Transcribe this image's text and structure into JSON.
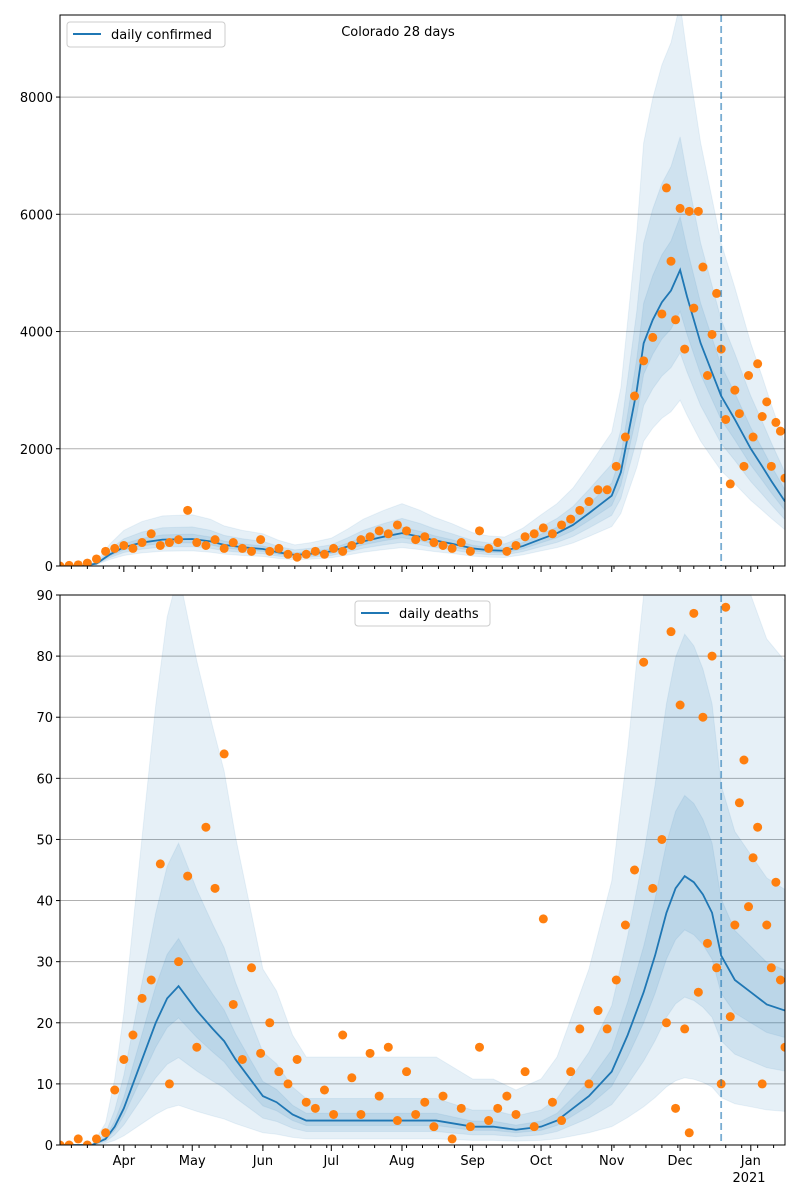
{
  "chart_data": [
    {
      "type": "line",
      "title": "Colorado 28 days",
      "legend": {
        "label": "daily confirmed",
        "placement": "top-left"
      },
      "x_start_date": "2020-03-04",
      "x_range_days": [
        0,
        318
      ],
      "xlim_dates": [
        "2020-03-04",
        "2021-01-16"
      ],
      "ylim": [
        0,
        9400
      ],
      "yticks": [
        0,
        2000,
        4000,
        6000,
        8000
      ],
      "ytick_labels": [
        "0",
        "2000",
        "4000",
        "6000",
        "8000"
      ],
      "grid": "horizontal",
      "forecast_marker_day": 290,
      "colors": {
        "median": "#1f77b4",
        "observed": "#ff7f0e",
        "band": "#1f77b4"
      },
      "bands": [
        {
          "lo": 0.56,
          "hi": 1.9
        },
        {
          "lo": 0.72,
          "hi": 1.45
        },
        {
          "lo": 0.86,
          "hi": 1.18
        }
      ],
      "median": [
        [
          0,
          0
        ],
        [
          10,
          5
        ],
        [
          16,
          40
        ],
        [
          22,
          200
        ],
        [
          28,
          320
        ],
        [
          36,
          400
        ],
        [
          45,
          450
        ],
        [
          58,
          460
        ],
        [
          66,
          420
        ],
        [
          72,
          360
        ],
        [
          80,
          320
        ],
        [
          89,
          290
        ],
        [
          96,
          230
        ],
        [
          103,
          190
        ],
        [
          110,
          210
        ],
        [
          119,
          250
        ],
        [
          126,
          330
        ],
        [
          133,
          420
        ],
        [
          142,
          500
        ],
        [
          150,
          560
        ],
        [
          158,
          500
        ],
        [
          164,
          440
        ],
        [
          172,
          380
        ],
        [
          181,
          300
        ],
        [
          188,
          270
        ],
        [
          195,
          260
        ],
        [
          203,
          340
        ],
        [
          211,
          460
        ],
        [
          218,
          560
        ],
        [
          225,
          700
        ],
        [
          232,
          900
        ],
        [
          242,
          1200
        ],
        [
          246,
          1600
        ],
        [
          249,
          2200
        ],
        [
          253,
          3000
        ],
        [
          256,
          3800
        ],
        [
          260,
          4200
        ],
        [
          264,
          4500
        ],
        [
          268,
          4700
        ],
        [
          272,
          5050
        ],
        [
          275,
          4600
        ],
        [
          278,
          4200
        ],
        [
          281,
          3800
        ],
        [
          285,
          3400
        ],
        [
          290,
          2900
        ],
        [
          296,
          2500
        ],
        [
          303,
          2000
        ],
        [
          308,
          1700
        ],
        [
          312,
          1450
        ],
        [
          318,
          1100
        ]
      ],
      "observed": [
        [
          0,
          0
        ],
        [
          4,
          10
        ],
        [
          8,
          20
        ],
        [
          12,
          50
        ],
        [
          16,
          120
        ],
        [
          20,
          250
        ],
        [
          24,
          300
        ],
        [
          28,
          350
        ],
        [
          32,
          300
        ],
        [
          36,
          400
        ],
        [
          40,
          550
        ],
        [
          44,
          350
        ],
        [
          48,
          400
        ],
        [
          52,
          450
        ],
        [
          56,
          950
        ],
        [
          60,
          400
        ],
        [
          64,
          350
        ],
        [
          68,
          450
        ],
        [
          72,
          300
        ],
        [
          76,
          400
        ],
        [
          80,
          300
        ],
        [
          84,
          250
        ],
        [
          88,
          450
        ],
        [
          92,
          250
        ],
        [
          96,
          300
        ],
        [
          100,
          200
        ],
        [
          104,
          150
        ],
        [
          108,
          200
        ],
        [
          112,
          250
        ],
        [
          116,
          200
        ],
        [
          120,
          300
        ],
        [
          124,
          250
        ],
        [
          128,
          350
        ],
        [
          132,
          450
        ],
        [
          136,
          500
        ],
        [
          140,
          600
        ],
        [
          144,
          550
        ],
        [
          148,
          700
        ],
        [
          152,
          600
        ],
        [
          156,
          450
        ],
        [
          160,
          500
        ],
        [
          164,
          400
        ],
        [
          168,
          350
        ],
        [
          172,
          300
        ],
        [
          176,
          400
        ],
        [
          180,
          250
        ],
        [
          184,
          600
        ],
        [
          188,
          300
        ],
        [
          192,
          400
        ],
        [
          196,
          250
        ],
        [
          200,
          350
        ],
        [
          204,
          500
        ],
        [
          208,
          550
        ],
        [
          212,
          650
        ],
        [
          216,
          550
        ],
        [
          220,
          700
        ],
        [
          224,
          800
        ],
        [
          228,
          950
        ],
        [
          232,
          1100
        ],
        [
          236,
          1300
        ],
        [
          240,
          1300
        ],
        [
          244,
          1700
        ],
        [
          248,
          2200
        ],
        [
          252,
          2900
        ],
        [
          256,
          3500
        ],
        [
          260,
          3900
        ],
        [
          264,
          4300
        ],
        [
          266,
          6450
        ],
        [
          268,
          5200
        ],
        [
          270,
          4200
        ],
        [
          272,
          6100
        ],
        [
          274,
          3700
        ],
        [
          276,
          6050
        ],
        [
          278,
          4400
        ],
        [
          280,
          6050
        ],
        [
          282,
          5100
        ],
        [
          284,
          3250
        ],
        [
          286,
          3950
        ],
        [
          288,
          4650
        ],
        [
          290,
          3700
        ],
        [
          292,
          2500
        ],
        [
          294,
          1400
        ],
        [
          296,
          3000
        ],
        [
          298,
          2600
        ],
        [
          300,
          1700
        ],
        [
          302,
          3250
        ],
        [
          304,
          2200
        ],
        [
          306,
          3450
        ],
        [
          308,
          2550
        ],
        [
          310,
          2800
        ],
        [
          312,
          1700
        ],
        [
          314,
          2450
        ],
        [
          316,
          2300
        ],
        [
          318,
          1500
        ]
      ]
    },
    {
      "type": "line",
      "legend": {
        "label": "daily deaths",
        "placement": "top-center"
      },
      "x_start_date": "2020-03-04",
      "x_range_days": [
        0,
        318
      ],
      "ylim": [
        0,
        90
      ],
      "yticks": [
        0,
        10,
        20,
        30,
        40,
        50,
        60,
        70,
        80,
        90
      ],
      "ytick_labels": [
        "0",
        "10",
        "20",
        "30",
        "40",
        "50",
        "60",
        "70",
        "80",
        "90"
      ],
      "xticks_days": [
        28,
        58,
        89,
        119,
        150,
        181,
        211,
        242,
        272,
        303
      ],
      "xtick_labels": [
        "Apr",
        "May",
        "Jun",
        "Jul",
        "Aug",
        "Sep",
        "Oct",
        "Nov",
        "Dec",
        "Jan"
      ],
      "xtick_year_label": "2021",
      "grid": "horizontal",
      "forecast_marker_day": 290,
      "colors": {
        "median": "#1f77b4",
        "observed": "#ff7f0e",
        "band": "#1f77b4"
      },
      "bands": [
        {
          "lo": 0.25,
          "hi": 3.6
        },
        {
          "lo": 0.55,
          "hi": 1.9
        },
        {
          "lo": 0.8,
          "hi": 1.3
        }
      ],
      "median": [
        [
          0,
          0
        ],
        [
          14,
          0
        ],
        [
          20,
          1
        ],
        [
          24,
          3
        ],
        [
          28,
          6
        ],
        [
          32,
          10
        ],
        [
          37,
          15
        ],
        [
          42,
          20
        ],
        [
          47,
          24
        ],
        [
          52,
          26
        ],
        [
          56,
          24
        ],
        [
          60,
          22
        ],
        [
          67,
          19
        ],
        [
          72,
          17
        ],
        [
          77,
          14
        ],
        [
          83,
          11
        ],
        [
          89,
          8
        ],
        [
          95,
          7
        ],
        [
          102,
          5
        ],
        [
          108,
          4
        ],
        [
          119,
          4
        ],
        [
          130,
          4
        ],
        [
          150,
          4
        ],
        [
          165,
          4
        ],
        [
          181,
          3
        ],
        [
          190,
          3
        ],
        [
          200,
          2.5
        ],
        [
          211,
          3
        ],
        [
          218,
          4
        ],
        [
          225,
          6
        ],
        [
          232,
          8
        ],
        [
          242,
          12
        ],
        [
          249,
          18
        ],
        [
          256,
          25
        ],
        [
          261,
          31
        ],
        [
          266,
          38
        ],
        [
          270,
          42
        ],
        [
          274,
          44
        ],
        [
          278,
          43
        ],
        [
          282,
          41
        ],
        [
          286,
          38
        ],
        [
          290,
          31
        ],
        [
          296,
          27
        ],
        [
          303,
          25
        ],
        [
          310,
          23
        ],
        [
          318,
          22
        ]
      ],
      "observed": [
        [
          0,
          0
        ],
        [
          4,
          0
        ],
        [
          8,
          1
        ],
        [
          12,
          0
        ],
        [
          16,
          1
        ],
        [
          20,
          2
        ],
        [
          24,
          9
        ],
        [
          28,
          14
        ],
        [
          32,
          18
        ],
        [
          36,
          24
        ],
        [
          40,
          27
        ],
        [
          44,
          46
        ],
        [
          48,
          10
        ],
        [
          52,
          30
        ],
        [
          56,
          44
        ],
        [
          60,
          16
        ],
        [
          64,
          52
        ],
        [
          68,
          42
        ],
        [
          72,
          64
        ],
        [
          76,
          23
        ],
        [
          80,
          14
        ],
        [
          84,
          29
        ],
        [
          88,
          15
        ],
        [
          92,
          20
        ],
        [
          96,
          12
        ],
        [
          100,
          10
        ],
        [
          104,
          14
        ],
        [
          108,
          7
        ],
        [
          112,
          6
        ],
        [
          116,
          9
        ],
        [
          120,
          5
        ],
        [
          124,
          18
        ],
        [
          128,
          11
        ],
        [
          132,
          5
        ],
        [
          136,
          15
        ],
        [
          140,
          8
        ],
        [
          144,
          16
        ],
        [
          148,
          4
        ],
        [
          152,
          12
        ],
        [
          156,
          5
        ],
        [
          160,
          7
        ],
        [
          164,
          3
        ],
        [
          168,
          8
        ],
        [
          172,
          1
        ],
        [
          176,
          6
        ],
        [
          180,
          3
        ],
        [
          184,
          16
        ],
        [
          188,
          4
        ],
        [
          192,
          6
        ],
        [
          196,
          8
        ],
        [
          200,
          5
        ],
        [
          204,
          12
        ],
        [
          208,
          3
        ],
        [
          212,
          37
        ],
        [
          216,
          7
        ],
        [
          220,
          4
        ],
        [
          224,
          12
        ],
        [
          228,
          19
        ],
        [
          232,
          10
        ],
        [
          236,
          22
        ],
        [
          240,
          19
        ],
        [
          244,
          27
        ],
        [
          248,
          36
        ],
        [
          252,
          45
        ],
        [
          256,
          79
        ],
        [
          260,
          42
        ],
        [
          264,
          50
        ],
        [
          266,
          20
        ],
        [
          268,
          84
        ],
        [
          270,
          6
        ],
        [
          272,
          72
        ],
        [
          274,
          19
        ],
        [
          276,
          2
        ],
        [
          278,
          87
        ],
        [
          280,
          25
        ],
        [
          282,
          70
        ],
        [
          284,
          33
        ],
        [
          286,
          80
        ],
        [
          288,
          29
        ],
        [
          290,
          10
        ],
        [
          292,
          88
        ],
        [
          294,
          21
        ],
        [
          296,
          36
        ],
        [
          298,
          56
        ],
        [
          300,
          63
        ],
        [
          302,
          39
        ],
        [
          304,
          47
        ],
        [
          306,
          52
        ],
        [
          308,
          10
        ],
        [
          310,
          36
        ],
        [
          312,
          29
        ],
        [
          314,
          43
        ],
        [
          316,
          27
        ],
        [
          318,
          16
        ]
      ]
    }
  ]
}
